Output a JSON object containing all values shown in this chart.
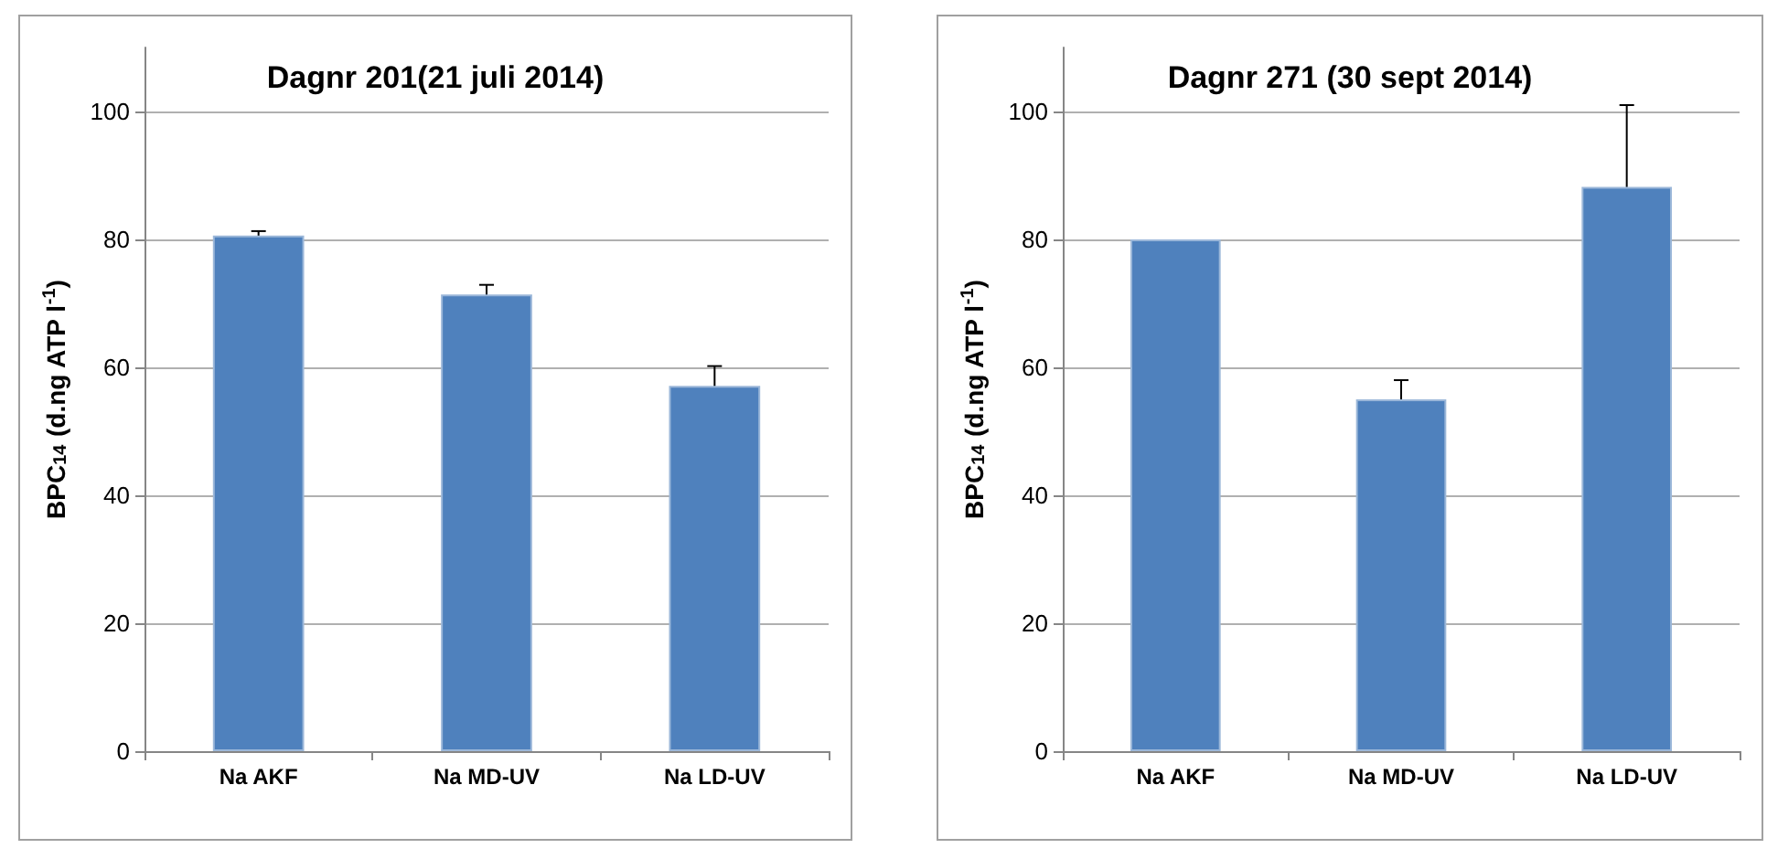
{
  "chart_data": [
    {
      "type": "bar",
      "title": "Dagnr 201(21 juli 2014)",
      "ylabel": "BPC$_{14}$ (d.ng ATP l$^{-1}$)",
      "categories": [
        "Na AKF",
        "Na MD-UV",
        "Na LD-UV"
      ],
      "values": [
        80.6,
        71.4,
        57.1
      ],
      "errors": [
        0.7,
        1.5,
        3.1
      ],
      "color": "#4f81bd",
      "ylim": [
        0,
        110
      ],
      "yticks": [
        0,
        20,
        40,
        60,
        80,
        100
      ],
      "grid": "y"
    },
    {
      "type": "bar",
      "title": "Dagnr 271 (30 sept 2014)",
      "ylabel": "BPC$_{14}$ (d.ng ATP l$^{-1}$)",
      "categories": [
        "Na AKF",
        "Na MD-UV",
        "Na LD-UV"
      ],
      "values": [
        80,
        55,
        88.2
      ],
      "errors": [
        null,
        3,
        12.8
      ],
      "color": "#4f81bd",
      "ylim": [
        0,
        110
      ],
      "yticks": [
        0,
        20,
        40,
        60,
        80,
        100
      ],
      "grid": "y"
    }
  ]
}
